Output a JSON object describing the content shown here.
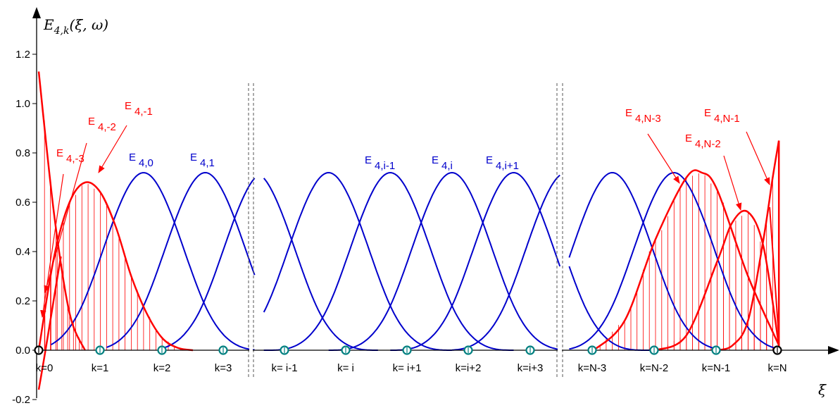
{
  "chart_data": {
    "type": "line",
    "title": "",
    "ylabel": "E_{4,k}(ξ, ω)",
    "ylabel_parts": {
      "base": "E",
      "sub": "4,k",
      "args": "(ξ, ω)"
    },
    "xlabel": "ξ",
    "ylim": [
      -0.2,
      1.3
    ],
    "yticks": [
      "-0.2",
      "0.0",
      "0.2",
      "0.4",
      "0.6",
      "0.8",
      "1.0",
      "1.2"
    ],
    "ytick_values": [
      -0.2,
      0.0,
      0.2,
      0.4,
      0.6,
      0.8,
      1.0,
      1.2
    ],
    "grid": false,
    "axis_breaks": 2,
    "knots": [
      "k=0",
      "k=1",
      "k=2",
      "k=3",
      "k= i-1",
      "k= i",
      "k= i+1",
      "k=i+2",
      "k=i+3",
      "k=N-3",
      "k=N-2",
      "k=N-1",
      "k=N"
    ],
    "knot_x": [
      0,
      1,
      2,
      3,
      4,
      5,
      6,
      7,
      8,
      9,
      10,
      11,
      12
    ],
    "colors": {
      "boundary": "#ff0000",
      "interior": "#0000cc",
      "knot_marker": "#008080",
      "axis": "#000000"
    },
    "interior_peak": 0.72,
    "series_labels": [
      {
        "base": "E",
        "sub": "4,-3",
        "color": "red"
      },
      {
        "base": "E",
        "sub": "4,-2",
        "color": "red"
      },
      {
        "base": "E",
        "sub": "4,-1",
        "color": "red"
      },
      {
        "base": "E",
        "sub": "4,0",
        "color": "blue"
      },
      {
        "base": "E",
        "sub": "4,1",
        "color": "blue"
      },
      {
        "base": "E",
        "sub": "4,i-1",
        "color": "blue"
      },
      {
        "base": "E",
        "sub": "4,i",
        "color": "blue"
      },
      {
        "base": "E",
        "sub": "4,i+1",
        "color": "blue"
      },
      {
        "base": "E",
        "sub": "4,N-3",
        "color": "red"
      },
      {
        "base": "E",
        "sub": "4,N-2",
        "color": "red"
      },
      {
        "base": "E",
        "sub": "4,N-1",
        "color": "red"
      }
    ],
    "boundary_series": [
      {
        "name": "E 4,-3",
        "x": [
          0.0,
          0.25,
          0.5,
          0.75
        ],
        "y": [
          1.13,
          0.55,
          0.15,
          0.0
        ]
      },
      {
        "name": "E 4,-1",
        "x": [
          0.0,
          0.25,
          0.5,
          0.75,
          1.0,
          1.25,
          1.5,
          1.75,
          2.0,
          2.25,
          2.5
        ],
        "y": [
          0.0,
          0.38,
          0.6,
          0.68,
          0.64,
          0.5,
          0.3,
          0.15,
          0.05,
          0.01,
          0.0
        ]
      },
      {
        "name": "E 4,N-3",
        "x": [
          9.0,
          9.5,
          10.0,
          10.5,
          10.75,
          11.0,
          11.5,
          12.0
        ],
        "y": [
          0.0,
          0.12,
          0.45,
          0.7,
          0.72,
          0.65,
          0.3,
          0.02
        ]
      },
      {
        "name": "E 4,N-2",
        "x": [
          10.0,
          10.5,
          11.0,
          11.25,
          11.5,
          11.75,
          12.0
        ],
        "y": [
          0.0,
          0.06,
          0.36,
          0.52,
          0.56,
          0.42,
          0.02
        ]
      },
      {
        "name": "E 4,N-1",
        "x": [
          11.0,
          11.25,
          11.5,
          11.75,
          11.9,
          12.0
        ],
        "y": [
          0.0,
          0.02,
          0.12,
          0.45,
          0.7,
          0.85
        ]
      }
    ],
    "knot_marker_count": 13
  }
}
